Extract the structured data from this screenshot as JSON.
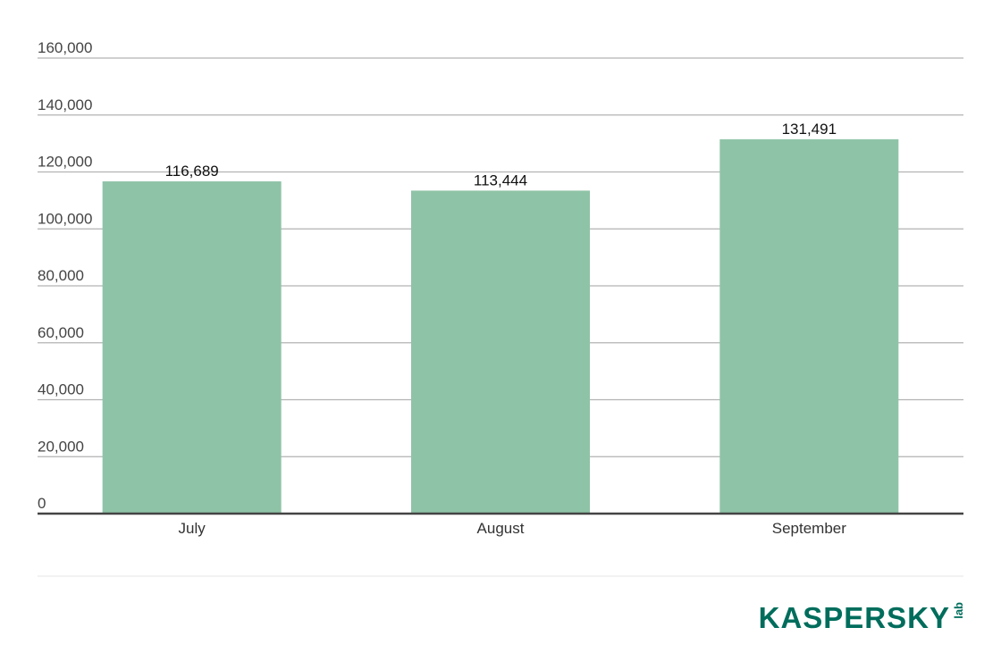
{
  "chart_data": {
    "type": "bar",
    "categories": [
      "July",
      "August",
      "September"
    ],
    "values": [
      116689,
      113444,
      131491
    ],
    "data_labels": [
      "116,689",
      "113,444",
      "131,491"
    ],
    "y_ticks": [
      0,
      20000,
      40000,
      60000,
      80000,
      100000,
      120000,
      140000,
      160000
    ],
    "y_tick_labels": [
      "0",
      "20,000",
      "40,000",
      "60,000",
      "80,000",
      "100,000",
      "120,000",
      "140,000",
      "160,000"
    ],
    "ylim": [
      0,
      160000
    ],
    "grid": true,
    "legend": "none",
    "bar_color": "#8fc3a7",
    "gridline_color": "#b3b3b3",
    "axis_color": "#444444"
  },
  "branding": {
    "logo_word": "KASPERSKY",
    "logo_suffix": "lab",
    "logo_color": "#006d5c"
  }
}
